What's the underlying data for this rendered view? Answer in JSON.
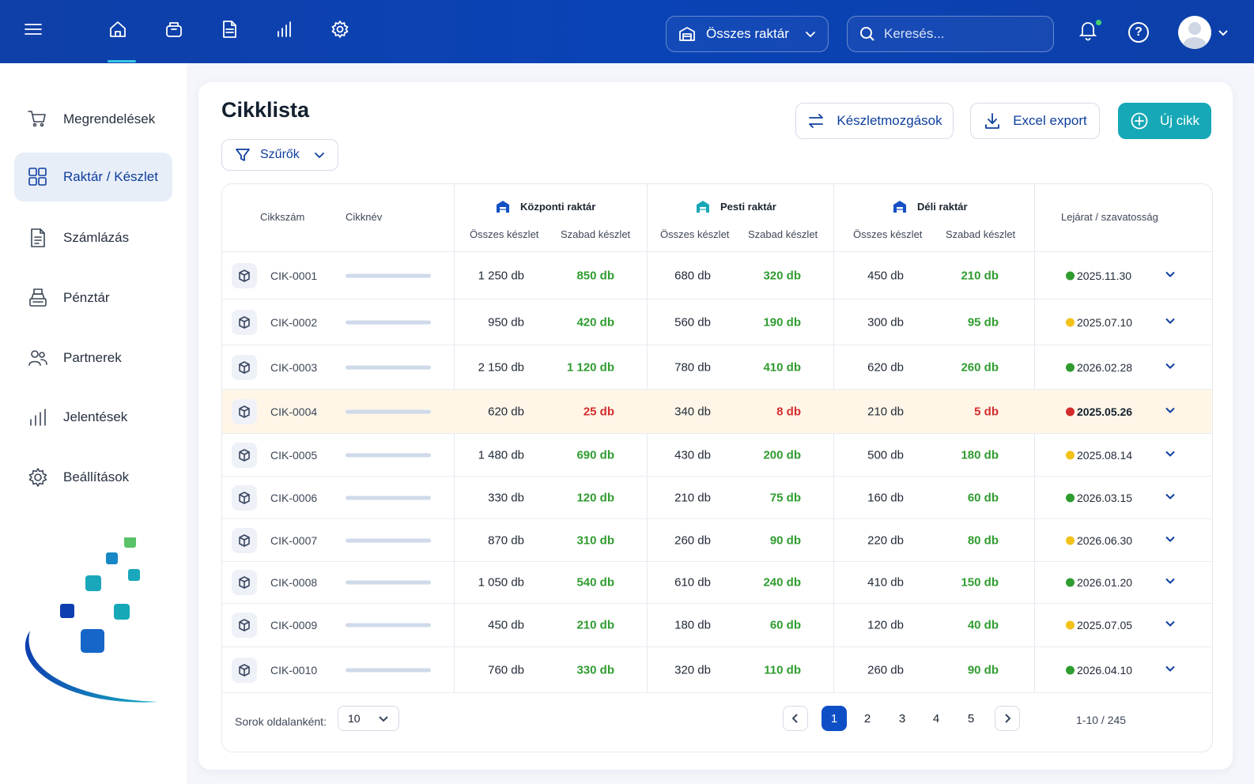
{
  "topbar": {
    "nav_icons": [
      "menu-icon",
      "home-icon",
      "inventory-box-icon",
      "document-icon",
      "bar-chart-icon",
      "gear-icon"
    ],
    "warehouse_select": "Összes raktár",
    "search_placeholder": "Keresés...",
    "help_glyph": "?",
    "notification_indicator_color": "#47d16b"
  },
  "sidebar": {
    "items": [
      {
        "label": "Megrendelések",
        "icon": "cart-icon"
      },
      {
        "label": "Raktár / Készlet",
        "icon": "warehouse-grid-icon",
        "active": true
      },
      {
        "label": "Számlázás",
        "icon": "invoice-icon"
      },
      {
        "label": "Pénztár",
        "icon": "cash-register-icon"
      },
      {
        "label": "Partnerek",
        "icon": "users-icon"
      },
      {
        "label": "Jelentések",
        "icon": "bar-chart-icon"
      },
      {
        "label": "Beállítások",
        "icon": "gear-icon"
      }
    ]
  },
  "page": {
    "title": "Cikklista",
    "filter_label": "Szűrők",
    "btn_movements": "Készletmozgások",
    "btn_export": "Excel export",
    "btn_new": "Új cikk"
  },
  "table": {
    "col_code": "Cikkszám",
    "col_name": "Cikknév",
    "warehouses": [
      "Központi raktár",
      "Pesti raktár",
      "Déli raktár"
    ],
    "sub_total": "Összes készlet",
    "sub_free": "Szabad készlet",
    "col_expiry": "Lejárat / szavatosság",
    "rows": [
      {
        "code": "CIK-0001",
        "k_total": "1 250 db",
        "k_free": "850 db",
        "p_total": "680 db",
        "p_free": "320 db",
        "d_total": "450 db",
        "d_free": "210 db",
        "expiry": "2025.11.30",
        "status": "ok"
      },
      {
        "code": "CIK-0002",
        "k_total": "950 db",
        "k_free": "420 db",
        "p_total": "560 db",
        "p_free": "190 db",
        "d_total": "300 db",
        "d_free": "95 db",
        "expiry": "2025.07.10",
        "status": "soon"
      },
      {
        "code": "CIK-0003",
        "k_total": "2 150 db",
        "k_free": "1 120 db",
        "p_total": "780 db",
        "p_free": "410 db",
        "d_total": "620 db",
        "d_free": "260 db",
        "expiry": "2026.02.28",
        "status": "ok"
      },
      {
        "code": "CIK-0004",
        "k_total": "620 db",
        "k_free": "25 db",
        "p_total": "340 db",
        "p_free": "8 db",
        "d_total": "210 db",
        "d_free": "5 db",
        "expiry": "2025.05.26",
        "status": "critical"
      },
      {
        "code": "CIK-0005",
        "k_total": "1 480 db",
        "k_free": "690 db",
        "p_total": "430 db",
        "p_free": "200 db",
        "d_total": "500 db",
        "d_free": "180 db",
        "expiry": "2025.08.14",
        "status": "soon"
      },
      {
        "code": "CIK-0006",
        "k_total": "330 db",
        "k_free": "120 db",
        "p_total": "210 db",
        "p_free": "75 db",
        "d_total": "160 db",
        "d_free": "60 db",
        "expiry": "2026.03.15",
        "status": "ok"
      },
      {
        "code": "CIK-0007",
        "k_total": "870 db",
        "k_free": "310 db",
        "p_total": "260 db",
        "p_free": "90 db",
        "d_total": "220 db",
        "d_free": "80 db",
        "expiry": "2026.06.30",
        "status": "soon"
      },
      {
        "code": "CIK-0008",
        "k_total": "1 050 db",
        "k_free": "540 db",
        "p_total": "610 db",
        "p_free": "240 db",
        "d_total": "410 db",
        "d_free": "150 db",
        "expiry": "2026.01.20",
        "status": "ok"
      },
      {
        "code": "CIK-0009",
        "k_total": "450 db",
        "k_free": "210 db",
        "p_total": "180 db",
        "p_free": "60 db",
        "d_total": "120 db",
        "d_free": "40 db",
        "expiry": "2025.07.05",
        "status": "soon"
      },
      {
        "code": "CIK-0010",
        "k_total": "760 db",
        "k_free": "330 db",
        "p_total": "320 db",
        "p_free": "110 db",
        "d_total": "260 db",
        "d_free": "90 db",
        "expiry": "2026.04.10",
        "status": "ok"
      }
    ],
    "status_colors": {
      "ok": "#2f9c2f",
      "soon": "#f2c21b",
      "critical": "#d42c2c"
    }
  },
  "pagination": {
    "per_page_label": "Sorok oldalanként:",
    "per_page_value": "10",
    "pages": [
      "1",
      "2",
      "3",
      "4",
      "5"
    ],
    "current_page": "1",
    "range": "1-10 / 245"
  }
}
